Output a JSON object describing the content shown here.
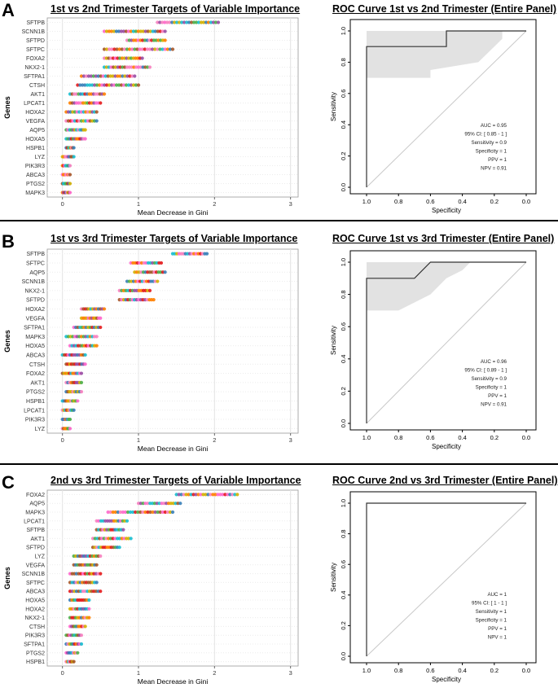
{
  "panels": [
    {
      "letter": "A",
      "vi_title": "1st vs 2nd Trimester Targets of Variable Importance",
      "roc_title": "ROC Curve 1st vs 2nd Trimester (Entire Panel)",
      "stats": [
        "AUC = 0.95",
        "95% CI: [ 0.85 - 1 ]",
        "Sensitivity = 0.9",
        "Specificity = 1",
        "PPV = 1",
        "NPV = 0.91"
      ]
    },
    {
      "letter": "B",
      "vi_title": "1st vs 3rd Trimester Targets of Variable Importance",
      "roc_title": "ROC Curve 1st vs 3rd Trimester (Entire Panel)",
      "stats": [
        "AUC = 0.96",
        "95% CI: [ 0.89 - 1 ]",
        "Sensitivity = 0.9",
        "Specificity = 1",
        "PPV = 1",
        "NPV = 0.91"
      ]
    },
    {
      "letter": "C",
      "vi_title": "2nd vs 3rd Trimester Targets of Variable Importance",
      "roc_title": "ROC Curve 2nd vs 3rd Trimester (Entire Panel)",
      "stats": [
        "AUC = 1",
        "95% CI: [ 1 - 1 ]",
        "Sensitivity = 1",
        "Specificity = 1",
        "PPV = 1",
        "NPV = 1"
      ]
    }
  ],
  "chart_data": [
    {
      "type": "scatter",
      "title": "1st vs 2nd Trimester Targets of Variable Importance",
      "xlabel": "Mean Decrease in Gini",
      "ylabel": "Genes",
      "xlim": [
        -0.2,
        3.1
      ],
      "xticks": [
        0,
        1,
        2,
        3
      ],
      "grid": true,
      "genes": [
        "SFTPB",
        "SCNN1B",
        "SFTPD",
        "SFTPC",
        "FOXA2",
        "NKX2-1",
        "SFTPA1",
        "CTSH",
        "AKT1",
        "LPCAT1",
        "HOXA2",
        "VEGFA",
        "AQP5",
        "HOXA5",
        "HSPB1",
        "LYZ",
        "PIK3R3",
        "ABCA3",
        "PTGS2",
        "MAPK3"
      ],
      "ranges": [
        [
          1.25,
          2.05
        ],
        [
          0.55,
          1.35
        ],
        [
          0.85,
          1.35
        ],
        [
          0.55,
          1.45
        ],
        [
          0.55,
          1.05
        ],
        [
          0.55,
          1.15
        ],
        [
          0.25,
          0.95
        ],
        [
          0.2,
          1.0
        ],
        [
          0.1,
          0.55
        ],
        [
          0.1,
          0.5
        ],
        [
          0.05,
          0.45
        ],
        [
          0.05,
          0.45
        ],
        [
          0.05,
          0.3
        ],
        [
          0.05,
          0.3
        ],
        [
          0.05,
          0.15
        ],
        [
          0.0,
          0.15
        ],
        [
          0.0,
          0.1
        ],
        [
          0.0,
          0.1
        ],
        [
          0.0,
          0.1
        ],
        [
          0.0,
          0.1
        ]
      ]
    },
    {
      "type": "line",
      "title": "ROC Curve 1st vs 2nd Trimester (Entire Panel)",
      "xlabel": "Specificity",
      "ylabel": "Sensitivity",
      "xlim": [
        1.0,
        0.0
      ],
      "ylim": [
        0.0,
        1.0
      ],
      "xticks": [
        1.0,
        0.8,
        0.6,
        0.4,
        0.2,
        0.0
      ],
      "yticks": [
        0.0,
        0.2,
        0.4,
        0.6,
        0.8,
        1.0
      ],
      "curve": [
        [
          1.0,
          0.0
        ],
        [
          1.0,
          0.9
        ],
        [
          0.5,
          0.9
        ],
        [
          0.5,
          1.0
        ],
        [
          0.0,
          1.0
        ]
      ],
      "ci_upper": [
        [
          1.0,
          1.0
        ],
        [
          0.15,
          1.0
        ],
        [
          0.15,
          0.95
        ],
        [
          0.0,
          1.0
        ]
      ],
      "ci_lower": [
        [
          1.0,
          0.7
        ],
        [
          0.6,
          0.7
        ],
        [
          0.6,
          0.75
        ],
        [
          0.3,
          0.8
        ],
        [
          0.2,
          0.9
        ],
        [
          0.15,
          0.95
        ]
      ],
      "stats": {
        "AUC": 0.95,
        "CI": [
          0.85,
          1
        ],
        "Sensitivity": 0.9,
        "Specificity": 1,
        "PPV": 1,
        "NPV": 0.91
      }
    },
    {
      "type": "scatter",
      "title": "1st vs 3rd Trimester Targets of Variable Importance",
      "xlabel": "Mean Decrease in Gini",
      "ylabel": "Genes",
      "xlim": [
        -0.2,
        3.1
      ],
      "xticks": [
        0,
        1,
        2,
        3
      ],
      "grid": true,
      "genes": [
        "SFTPB",
        "SFTPC",
        "AQP5",
        "SCNN1B",
        "NKX2-1",
        "SFTPD",
        "HOXA2",
        "VEGFA",
        "SFTPA1",
        "MAPK3",
        "HOXA5",
        "ABCA3",
        "CTSH",
        "FOXA2",
        "AKT1",
        "PTGS2",
        "HSPB1",
        "LPCAT1",
        "PIK3R3",
        "LYZ"
      ],
      "ranges": [
        [
          1.45,
          1.9
        ],
        [
          0.9,
          1.3
        ],
        [
          0.95,
          1.35
        ],
        [
          0.85,
          1.25
        ],
        [
          0.75,
          1.15
        ],
        [
          0.75,
          1.2
        ],
        [
          0.25,
          0.55
        ],
        [
          0.25,
          0.5
        ],
        [
          0.15,
          0.5
        ],
        [
          0.05,
          0.45
        ],
        [
          0.1,
          0.45
        ],
        [
          0.0,
          0.3
        ],
        [
          0.05,
          0.3
        ],
        [
          0.0,
          0.25
        ],
        [
          0.05,
          0.25
        ],
        [
          0.05,
          0.25
        ],
        [
          0.0,
          0.2
        ],
        [
          0.0,
          0.15
        ],
        [
          0.0,
          0.1
        ],
        [
          0.0,
          0.1
        ]
      ]
    },
    {
      "type": "line",
      "title": "ROC Curve 1st vs 3rd Trimester (Entire Panel)",
      "xlabel": "Specificity",
      "ylabel": "Sensitivity",
      "xlim": [
        1.0,
        0.0
      ],
      "ylim": [
        0.0,
        1.0
      ],
      "xticks": [
        1.0,
        0.8,
        0.6,
        0.4,
        0.2,
        0.0
      ],
      "yticks": [
        0.0,
        0.2,
        0.4,
        0.6,
        0.8,
        1.0
      ],
      "curve": [
        [
          1.0,
          0.0
        ],
        [
          1.0,
          0.9
        ],
        [
          0.7,
          0.9
        ],
        [
          0.6,
          1.0
        ],
        [
          0.0,
          1.0
        ]
      ],
      "ci_upper": [
        [
          1.0,
          1.0
        ],
        [
          0.35,
          1.0
        ],
        [
          0.0,
          1.0
        ]
      ],
      "ci_lower": [
        [
          1.0,
          0.7
        ],
        [
          0.8,
          0.7
        ],
        [
          0.7,
          0.75
        ],
        [
          0.6,
          0.8
        ],
        [
          0.5,
          0.9
        ],
        [
          0.4,
          0.95
        ],
        [
          0.35,
          1.0
        ]
      ],
      "stats": {
        "AUC": 0.96,
        "CI": [
          0.89,
          1
        ],
        "Sensitivity": 0.9,
        "Specificity": 1,
        "PPV": 1,
        "NPV": 0.91
      }
    },
    {
      "type": "scatter",
      "title": "2nd vs 3rd Trimester Targets of Variable Importance",
      "xlabel": "Mean Decrease in Gini",
      "ylabel": "Genes",
      "xlim": [
        -0.2,
        3.1
      ],
      "xticks": [
        0,
        1,
        2,
        3
      ],
      "grid": true,
      "genes": [
        "FOXA2",
        "AQP5",
        "MAPK3",
        "LPCAT1",
        "SFTPB",
        "AKT1",
        "SFTPD",
        "LYZ",
        "VEGFA",
        "SCNN1B",
        "SFTPC",
        "ABCA3",
        "HOXA5",
        "HOXA2",
        "NKX2-1",
        "CTSH",
        "PIK3R3",
        "SFTPA1",
        "PTGS2",
        "HSPB1"
      ],
      "ranges": [
        [
          1.5,
          2.3
        ],
        [
          1.0,
          1.55
        ],
        [
          0.6,
          1.45
        ],
        [
          0.45,
          0.85
        ],
        [
          0.45,
          0.8
        ],
        [
          0.4,
          0.9
        ],
        [
          0.4,
          0.75
        ],
        [
          0.15,
          0.5
        ],
        [
          0.15,
          0.45
        ],
        [
          0.1,
          0.5
        ],
        [
          0.1,
          0.45
        ],
        [
          0.1,
          0.5
        ],
        [
          0.1,
          0.35
        ],
        [
          0.1,
          0.35
        ],
        [
          0.1,
          0.35
        ],
        [
          0.1,
          0.3
        ],
        [
          0.05,
          0.25
        ],
        [
          0.05,
          0.25
        ],
        [
          0.05,
          0.2
        ],
        [
          0.05,
          0.15
        ]
      ]
    },
    {
      "type": "line",
      "title": "ROC Curve 2nd vs 3rd Trimester (Entire Panel)",
      "xlabel": "Specificity",
      "ylabel": "Sensitivity",
      "xlim": [
        1.0,
        0.0
      ],
      "ylim": [
        0.0,
        1.0
      ],
      "xticks": [
        1.0,
        0.8,
        0.6,
        0.4,
        0.2,
        0.0
      ],
      "yticks": [
        0.0,
        0.2,
        0.4,
        0.6,
        0.8,
        1.0
      ],
      "curve": [
        [
          1.0,
          0.0
        ],
        [
          1.0,
          1.0
        ],
        [
          0.0,
          1.0
        ]
      ],
      "ci_upper": [],
      "ci_lower": [],
      "stats": {
        "AUC": 1,
        "CI": [
          1,
          1
        ],
        "Sensitivity": 1,
        "Specificity": 1,
        "PPV": 1,
        "NPV": 1
      }
    }
  ]
}
